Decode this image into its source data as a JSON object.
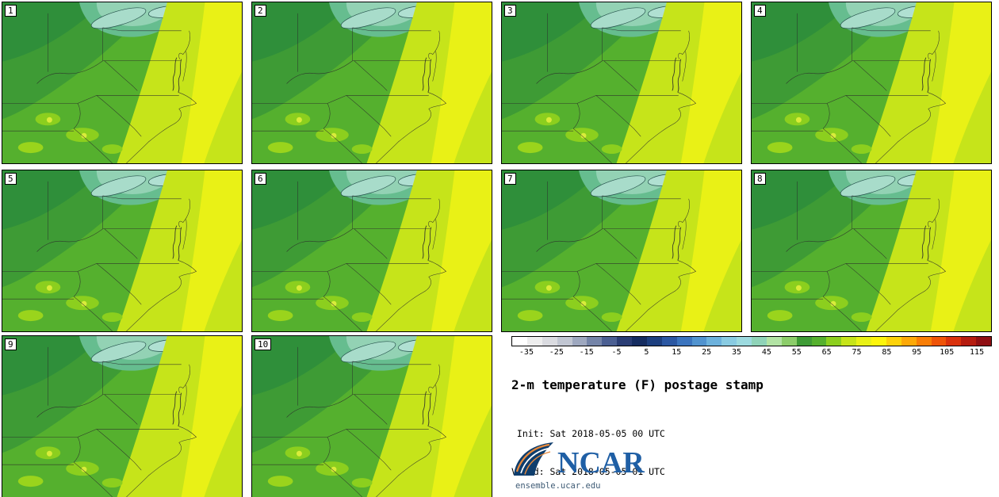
{
  "panels": [
    {
      "label": "1"
    },
    {
      "label": "2"
    },
    {
      "label": "3"
    },
    {
      "label": "4"
    },
    {
      "label": "5"
    },
    {
      "label": "6"
    },
    {
      "label": "7"
    },
    {
      "label": "8"
    },
    {
      "label": "9"
    },
    {
      "label": "10"
    }
  ],
  "legend": {
    "range": [
      -40,
      120
    ],
    "ticks": [
      "-35",
      "-25",
      "-15",
      "-5",
      "5",
      "15",
      "25",
      "35",
      "45",
      "55",
      "65",
      "75",
      "85",
      "95",
      "105",
      "115"
    ],
    "colors": [
      "#ffffff",
      "#ededed",
      "#dadbe0",
      "#c1c6d2",
      "#9ea8bf",
      "#7484a8",
      "#4b5f92",
      "#2a3d74",
      "#152c60",
      "#1d3f7f",
      "#2b57a2",
      "#3b74be",
      "#5193cf",
      "#6cb1dc",
      "#89cbe2",
      "#9cdadf",
      "#8fd3b8",
      "#b2e3a4",
      "#8ccd6a",
      "#3e9b35",
      "#55b02e",
      "#8ccf1e",
      "#c6e41a",
      "#e9f116",
      "#fdf50c",
      "#fdd20a",
      "#fda908",
      "#f97e06",
      "#ef5408",
      "#d9310c",
      "#b51c0f",
      "#8f0f12"
    ],
    "title": "2-m temperature (F) postage stamp",
    "init_line": " Init: Sat 2018-05-05 00 UTC",
    "valid_line": "Valid: Sat 2018-05-05 01 UTC"
  },
  "branding": {
    "logo_text": "NCAR",
    "site": "ensemble.ucar.edu",
    "logo_blue": "#1f5fa5",
    "swoosh_navy": "#0e3d6c",
    "swoosh_orange": "#e8893a"
  }
}
